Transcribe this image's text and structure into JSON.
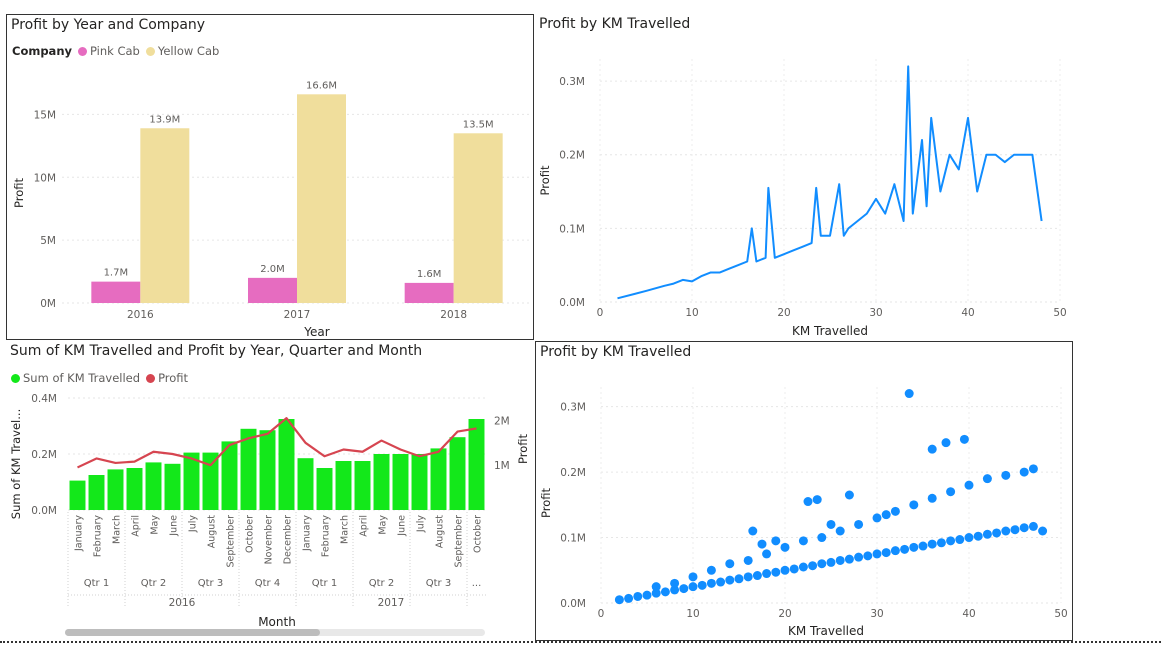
{
  "panels": {
    "p1": {
      "title": "Profit by Year and Company",
      "legend_title": "Company",
      "legend_items": [
        {
          "label": "Pink Cab",
          "color": "#e66cc0"
        },
        {
          "label": "Yellow Cab",
          "color": "#f0de9c"
        }
      ]
    },
    "p2": {
      "title": "Profit by KM Travelled"
    },
    "p3": {
      "title": "Sum of KM Travelled and Profit by Year, Quarter and Month",
      "legend_items": [
        {
          "label": "Sum of KM Travelled",
          "color": "#13e81a"
        },
        {
          "label": "Profit",
          "color": "#d64550"
        }
      ]
    },
    "p4": {
      "title": "Profit by KM Travelled"
    }
  },
  "chart_data": [
    {
      "type": "bar",
      "title": "Profit by Year and Company",
      "xlabel": "Year",
      "ylabel": "Profit",
      "categories": [
        "2016",
        "2017",
        "2018"
      ],
      "series": [
        {
          "name": "Pink Cab",
          "color": "#e66cc0",
          "values": [
            1.7,
            2.0,
            1.6
          ],
          "labels": [
            "1.7M",
            "2.0M",
            "1.6M"
          ]
        },
        {
          "name": "Yellow Cab",
          "color": "#f0de9c",
          "values": [
            13.9,
            16.6,
            13.5
          ],
          "labels": [
            "13.9M",
            "16.6M",
            "13.5M"
          ]
        }
      ],
      "ylim": [
        0,
        17.5
      ],
      "yticks": [
        0,
        5,
        10,
        15
      ],
      "ytick_labels": [
        "0M",
        "5M",
        "10M",
        "15M"
      ],
      "unit": "millions",
      "legend_position": "top-left",
      "grid": true
    },
    {
      "type": "line",
      "title": "Profit by KM Travelled",
      "xlabel": "KM Travelled",
      "ylabel": "Profit",
      "color": "#118dff",
      "xlim": [
        0,
        50
      ],
      "ylim": [
        0,
        0.33
      ],
      "xticks": [
        0,
        10,
        20,
        30,
        40,
        50
      ],
      "yticks": [
        0,
        0.1,
        0.2,
        0.3
      ],
      "ytick_labels": [
        "0.0M",
        "0.1M",
        "0.2M",
        "0.3M"
      ],
      "unit": "millions",
      "grid": true,
      "x": [
        1.9,
        5,
        7,
        8,
        9,
        10,
        11,
        12,
        13,
        14,
        15,
        16,
        16.5,
        17,
        18,
        18.3,
        19,
        20,
        21,
        22,
        23,
        23.5,
        24,
        25,
        26,
        26.5,
        27,
        28,
        29,
        30,
        31,
        32,
        33,
        33.5,
        34,
        35,
        35.5,
        36,
        37,
        38,
        39,
        40,
        41,
        42,
        43,
        44,
        45,
        46,
        47,
        48
      ],
      "y": [
        0.005,
        0.015,
        0.022,
        0.025,
        0.03,
        0.028,
        0.035,
        0.04,
        0.04,
        0.045,
        0.05,
        0.055,
        0.1,
        0.055,
        0.06,
        0.155,
        0.06,
        0.065,
        0.07,
        0.075,
        0.08,
        0.155,
        0.09,
        0.09,
        0.16,
        0.09,
        0.1,
        0.11,
        0.12,
        0.14,
        0.12,
        0.16,
        0.11,
        0.32,
        0.12,
        0.22,
        0.13,
        0.25,
        0.15,
        0.2,
        0.18,
        0.25,
        0.15,
        0.2,
        0.2,
        0.19,
        0.2,
        0.2,
        0.2,
        0.11
      ]
    },
    {
      "type": "bar",
      "combo": "bar+line",
      "title": "Sum of KM Travelled and Profit by Year, Quarter and Month",
      "xlabel": "Month",
      "ylabel": "Sum of KM Travel...",
      "y2label": "Profit",
      "categories": [
        "January",
        "February",
        "March",
        "April",
        "May",
        "June",
        "July",
        "August",
        "September",
        "October",
        "November",
        "December",
        "January",
        "February",
        "March",
        "April",
        "May",
        "June",
        "July",
        "August",
        "September",
        "October"
      ],
      "quarters": [
        {
          "label": "Qtr 1",
          "span": 3
        },
        {
          "label": "Qtr 2",
          "span": 3
        },
        {
          "label": "Qtr 3",
          "span": 3
        },
        {
          "label": "Qtr 4",
          "span": 3
        },
        {
          "label": "Qtr 1",
          "span": 3
        },
        {
          "label": "Qtr 2",
          "span": 3
        },
        {
          "label": "Qtr 3",
          "span": 3
        },
        {
          "label": "...",
          "span": 1
        }
      ],
      "years": [
        {
          "label": "2016",
          "span": 12
        },
        {
          "label": "2017",
          "span": 10
        }
      ],
      "series": [
        {
          "name": "Sum of KM Travelled",
          "color": "#13e81a",
          "axis": "left",
          "values": [
            0.105,
            0.125,
            0.145,
            0.15,
            0.17,
            0.165,
            0.205,
            0.205,
            0.245,
            0.29,
            0.285,
            0.325,
            0.185,
            0.15,
            0.175,
            0.175,
            0.2,
            0.2,
            0.2,
            0.22,
            0.26,
            0.325
          ]
        },
        {
          "name": "Profit",
          "color": "#d64550",
          "axis": "right",
          "values": [
            0.95,
            1.15,
            1.05,
            1.08,
            1.3,
            1.25,
            1.15,
            1.0,
            1.45,
            1.6,
            1.7,
            2.05,
            1.5,
            1.2,
            1.35,
            1.3,
            1.55,
            1.35,
            1.2,
            1.3,
            1.75,
            1.82
          ]
        }
      ],
      "ylim": [
        0,
        0.4
      ],
      "yticks": [
        0,
        0.2,
        0.4
      ],
      "ytick_labels": [
        "0.0M",
        "0.2M",
        "0.4M"
      ],
      "y2lim": [
        0,
        2.5
      ],
      "y2ticks": [
        1,
        2
      ],
      "y2tick_labels": [
        "1M",
        "2M"
      ],
      "unit": "millions",
      "grid": true
    },
    {
      "type": "scatter",
      "title": "Profit by KM Travelled",
      "xlabel": "KM Travelled",
      "ylabel": "Profit",
      "color": "#118dff",
      "xlim": [
        0,
        50
      ],
      "ylim": [
        0,
        0.33
      ],
      "xticks": [
        0,
        10,
        20,
        30,
        40,
        50
      ],
      "yticks": [
        0,
        0.1,
        0.2,
        0.3
      ],
      "ytick_labels": [
        "0.0M",
        "0.1M",
        "0.2M",
        "0.3M"
      ],
      "unit": "millions",
      "grid": true,
      "x": [
        2,
        3,
        4,
        5,
        6,
        7,
        8,
        9,
        10,
        11,
        12,
        13,
        14,
        15,
        16,
        17,
        18,
        19,
        20,
        21,
        22,
        23,
        24,
        25,
        26,
        27,
        28,
        29,
        30,
        31,
        32,
        33,
        34,
        35,
        36,
        37,
        38,
        39,
        40,
        41,
        42,
        43,
        44,
        45,
        46,
        47,
        48,
        6,
        8,
        10,
        12,
        14,
        16,
        18,
        20,
        22,
        24,
        26,
        28,
        30,
        32,
        34,
        36,
        38,
        40,
        42,
        44,
        46,
        47,
        16.5,
        22.5,
        23.5,
        27,
        33.5,
        36,
        37.5,
        39.5,
        17.5,
        19,
        25,
        31
      ],
      "y": [
        0.005,
        0.007,
        0.01,
        0.012,
        0.015,
        0.017,
        0.02,
        0.022,
        0.025,
        0.027,
        0.03,
        0.032,
        0.035,
        0.037,
        0.04,
        0.042,
        0.045,
        0.047,
        0.05,
        0.052,
        0.055,
        0.057,
        0.06,
        0.062,
        0.065,
        0.067,
        0.07,
        0.072,
        0.075,
        0.077,
        0.08,
        0.082,
        0.085,
        0.087,
        0.09,
        0.092,
        0.095,
        0.097,
        0.1,
        0.102,
        0.105,
        0.107,
        0.11,
        0.112,
        0.115,
        0.117,
        0.11,
        0.025,
        0.03,
        0.04,
        0.05,
        0.06,
        0.065,
        0.075,
        0.085,
        0.095,
        0.1,
        0.11,
        0.12,
        0.13,
        0.14,
        0.15,
        0.16,
        0.17,
        0.18,
        0.19,
        0.195,
        0.2,
        0.205,
        0.11,
        0.155,
        0.158,
        0.165,
        0.32,
        0.235,
        0.245,
        0.25,
        0.09,
        0.095,
        0.12,
        0.135
      ]
    }
  ]
}
